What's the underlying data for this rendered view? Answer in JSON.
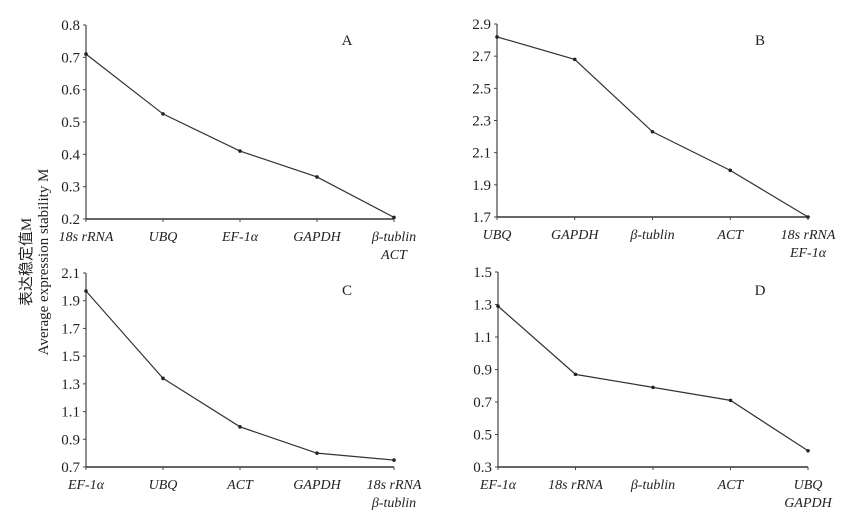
{
  "y_label": {
    "zh": "表达稳定值M",
    "en": "Average expression stability M"
  },
  "chart_data": [
    {
      "type": "line",
      "panel": "A",
      "categories": [
        "18s rRNA",
        "UBQ",
        "EF-1α",
        "GAPDH",
        "β-tublin"
      ],
      "categories_line2": [
        "",
        "",
        "",
        "",
        "ACT"
      ],
      "values": [
        0.71,
        0.525,
        0.41,
        0.33,
        0.205
      ],
      "ylim": [
        0.2,
        0.8
      ],
      "yticks": [
        "0.2",
        "0.3",
        "0.4",
        "0.5",
        "0.6",
        "0.7",
        "0.8"
      ]
    },
    {
      "type": "line",
      "panel": "B",
      "categories": [
        "UBQ",
        "GAPDH",
        "β-tublin",
        "ACT",
        "18s rRNA"
      ],
      "categories_line2": [
        "",
        "",
        "",
        "",
        "EF-1α"
      ],
      "values": [
        2.82,
        2.68,
        2.23,
        1.99,
        1.7
      ],
      "ylim": [
        1.7,
        2.9
      ],
      "yticks": [
        "1.7",
        "1.9",
        "2.1",
        "2.3",
        "2.5",
        "2.7",
        "2.9"
      ]
    },
    {
      "type": "line",
      "panel": "C",
      "categories": [
        "EF-1α",
        "UBQ",
        "ACT",
        "GAPDH",
        "18s rRNA"
      ],
      "categories_line2": [
        "",
        "",
        "",
        "",
        "β-tublin"
      ],
      "values": [
        1.97,
        1.34,
        0.99,
        0.8,
        0.75
      ],
      "ylim": [
        0.7,
        2.1
      ],
      "yticks": [
        "0.7",
        "0.9",
        "1.1",
        "1.3",
        "1.5",
        "1.7",
        "1.9",
        "2.1"
      ]
    },
    {
      "type": "line",
      "panel": "D",
      "categories": [
        "EF-1α",
        "18s rRNA",
        "β-tublin",
        "ACT",
        "UBQ"
      ],
      "categories_line2": [
        "",
        "",
        "",
        "",
        "GAPDH"
      ],
      "values": [
        1.29,
        0.87,
        0.79,
        0.71,
        0.4
      ],
      "ylim": [
        0.3,
        1.5
      ],
      "yticks": [
        "0.3",
        "0.5",
        "0.7",
        "0.9",
        "1.1",
        "1.3",
        "1.5"
      ]
    }
  ]
}
